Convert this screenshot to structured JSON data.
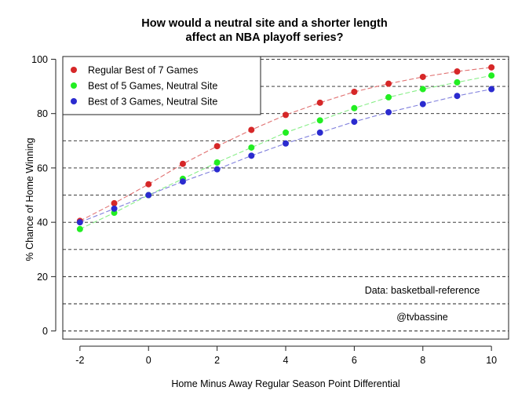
{
  "chart_data": {
    "type": "line",
    "title": "How would a neutral site and a shorter length affect an NBA playoff series?",
    "title_lines": [
      "How would a neutral site and a shorter length",
      "affect an NBA playoff series?"
    ],
    "xlabel": "Home Minus Away Regular Season Point Differential",
    "ylabel": "% Chance of Home Winning",
    "x": [
      -2,
      -1,
      0,
      1,
      2,
      3,
      4,
      5,
      6,
      7,
      8,
      9,
      10
    ],
    "xlim": [
      -2.5,
      10.5
    ],
    "ylim": [
      -3,
      101
    ],
    "x_ticks": [
      -2,
      0,
      2,
      4,
      6,
      8,
      10
    ],
    "x_tick_labels": [
      "-2",
      "0",
      "2",
      "4",
      "6",
      "8",
      "10"
    ],
    "y_ticks": [
      0,
      20,
      40,
      60,
      80,
      100
    ],
    "y_tick_labels": [
      "0",
      "20",
      "40",
      "60",
      "80",
      "100"
    ],
    "grid": "horizontal dashed every 10",
    "grid_lines": [
      0,
      10,
      20,
      30,
      40,
      50,
      60,
      70,
      80,
      90,
      100
    ],
    "legend_position": "top-left",
    "series": [
      {
        "name": "Regular Best of 7 Games",
        "color": "#d62728",
        "line_color": "#e07070",
        "values": [
          40.5,
          47,
          54,
          61.5,
          68,
          74,
          79.5,
          84,
          88,
          91,
          93.5,
          95.5,
          97
        ]
      },
      {
        "name": "Best of 5 Games, Neutral Site",
        "color": "#22ee22",
        "line_color": "#88ee88",
        "values": [
          37.5,
          43.5,
          50,
          56,
          62,
          67.5,
          73,
          77.5,
          82,
          86,
          89,
          91.5,
          94
        ]
      },
      {
        "name": "Best of 3 Games, Neutral Site",
        "color": "#2b2bcf",
        "line_color": "#8080dd",
        "values": [
          40,
          45,
          50,
          55,
          59.5,
          64.5,
          69,
          73,
          77,
          80.5,
          83.5,
          86.5,
          89
        ]
      }
    ],
    "annotations": [
      "Data: basketball-reference",
      "@tvbassine"
    ]
  }
}
